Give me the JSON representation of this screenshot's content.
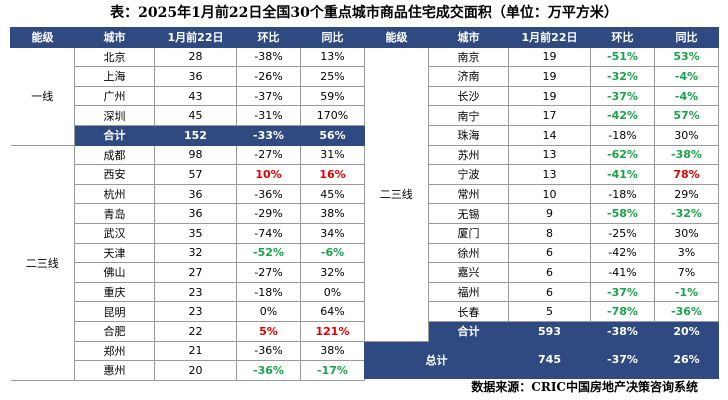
{
  "title": "表：2025年1月前22日全国30个重点城市商品住宅成交面积（单位：万平方米）",
  "headers": [
    "能级",
    "城市",
    "1月前22日",
    "环比",
    "同比"
  ],
  "left": {
    "tier1_label": "一线",
    "tier1": [
      {
        "city": "北京",
        "val": "28",
        "mom": "-38%",
        "yoy": "13%"
      },
      {
        "city": "上海",
        "val": "36",
        "mom": "-26%",
        "yoy": "25%"
      },
      {
        "city": "广州",
        "val": "43",
        "mom": "-37%",
        "yoy": "59%"
      },
      {
        "city": "深圳",
        "val": "45",
        "mom": "-31%",
        "yoy": "170%"
      }
    ],
    "tier1_sum": {
      "label": "合计",
      "val": "152",
      "mom": "-33%",
      "yoy": "56%"
    },
    "tier2_label": "二三线",
    "tier2": [
      {
        "city": "成都",
        "val": "98",
        "mom": "-27%",
        "yoy": "31%"
      },
      {
        "city": "西安",
        "val": "57",
        "mom": "10%",
        "yoy": "16%"
      },
      {
        "city": "杭州",
        "val": "36",
        "mom": "-36%",
        "yoy": "45%"
      },
      {
        "city": "青岛",
        "val": "36",
        "mom": "-29%",
        "yoy": "38%"
      },
      {
        "city": "武汉",
        "val": "35",
        "mom": "-74%",
        "yoy": "34%"
      },
      {
        "city": "天津",
        "val": "32",
        "mom": "-52%",
        "yoy": "-6%"
      },
      {
        "city": "佛山",
        "val": "27",
        "mom": "-27%",
        "yoy": "32%"
      },
      {
        "city": "重庆",
        "val": "23",
        "mom": "-18%",
        "yoy": "0%"
      },
      {
        "city": "昆明",
        "val": "23",
        "mom": "0%",
        "yoy": "64%"
      },
      {
        "city": "合肥",
        "val": "22",
        "mom": "5%",
        "yoy": "121%"
      },
      {
        "city": "郑州",
        "val": "21",
        "mom": "-36%",
        "yoy": "38%"
      },
      {
        "city": "惠州",
        "val": "20",
        "mom": "-36%",
        "yoy": "-17%"
      }
    ]
  },
  "right": {
    "tier2_label": "二三线",
    "rows": [
      {
        "city": "南京",
        "val": "19",
        "mom": "-51%",
        "yoy": "53%"
      },
      {
        "city": "济南",
        "val": "19",
        "mom": "-32%",
        "yoy": "-4%"
      },
      {
        "city": "长沙",
        "val": "19",
        "mom": "-37%",
        "yoy": "-4%"
      },
      {
        "city": "南宁",
        "val": "17",
        "mom": "-42%",
        "yoy": "57%"
      },
      {
        "city": "珠海",
        "val": "14",
        "mom": "-18%",
        "yoy": "30%"
      },
      {
        "city": "苏州",
        "val": "13",
        "mom": "-62%",
        "yoy": "-38%"
      },
      {
        "city": "宁波",
        "val": "13",
        "mom": "-41%",
        "yoy": "78%"
      },
      {
        "city": "常州",
        "val": "10",
        "mom": "-18%",
        "yoy": "29%"
      },
      {
        "city": "无锡",
        "val": "9",
        "mom": "-58%",
        "yoy": "-32%"
      },
      {
        "city": "厦门",
        "val": "8",
        "mom": "-25%",
        "yoy": "30%"
      },
      {
        "city": "徐州",
        "val": "6",
        "mom": "-42%",
        "yoy": "3%"
      },
      {
        "city": "嘉兴",
        "val": "6",
        "mom": "-41%",
        "yoy": "7%"
      },
      {
        "city": "福州",
        "val": "6",
        "mom": "-37%",
        "yoy": "-1%"
      },
      {
        "city": "长春",
        "val": "5",
        "mom": "-78%",
        "yoy": "-36%"
      }
    ],
    "tier2_sum": {
      "label": "合计",
      "val": "593",
      "mom": "-38%",
      "yoy": "20%"
    },
    "total": {
      "label": "总计",
      "val": "745",
      "mom": "-37%",
      "yoy": "26%"
    }
  },
  "colors": {
    "header_bg": "#2f4a80",
    "positive_highlight": "#e00000",
    "negative_highlight": "#1aa34a"
  },
  "highlights": {
    "green": [
      "天津.mom",
      "天津.yoy",
      "惠州.mom",
      "惠州.yoy",
      "南京.mom",
      "南京.yoy",
      "济南.mom",
      "济南.yoy",
      "长沙.mom",
      "长沙.yoy",
      "南宁.mom",
      "南宁.yoy",
      "苏州.mom",
      "苏州.yoy",
      "宁波.mom",
      "无锡.mom",
      "无锡.yoy",
      "福州.mom",
      "福州.yoy",
      "长春.mom",
      "长春.yoy"
    ],
    "red": [
      "西安.mom",
      "西安.yoy",
      "合肥.mom",
      "合肥.yoy",
      "宁波.yoy"
    ]
  },
  "source": "数据来源：CRIC中国房地产决策咨询系统"
}
